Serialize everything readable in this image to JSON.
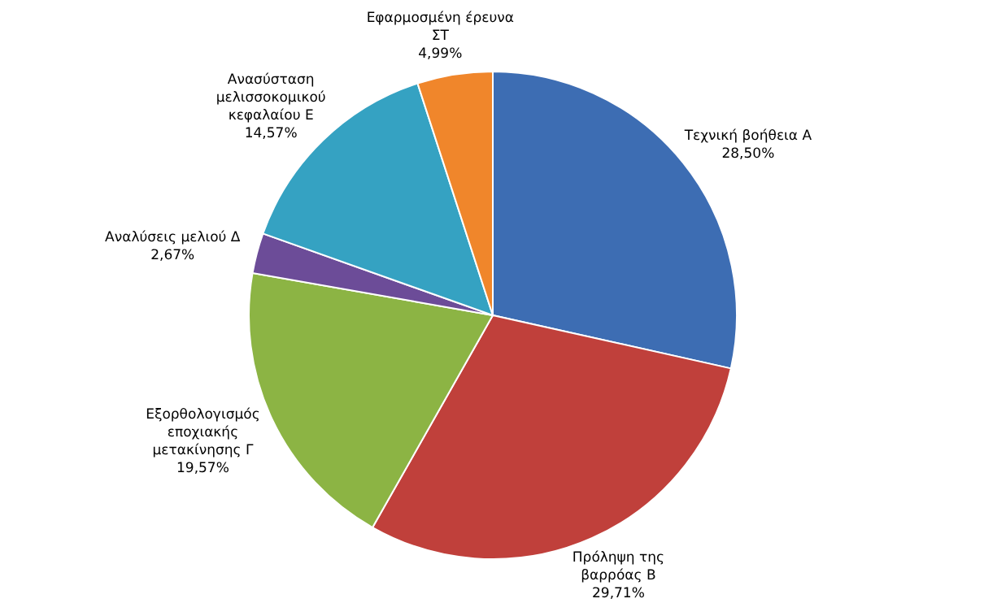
{
  "chart_data": {
    "type": "pie",
    "categories": [
      "Τεχνική βοήθεια Α",
      "Πρόληψη της βαρρόας Β",
      "Εξορθολογισμός εποχιακής μετακίνησης Γ",
      "Αναλύσεις μελιού Δ",
      "Ανασύσταση μελισσοκομικού κεφαλαίου Ε",
      "Εφαρμοσμένη έρευνα ΣΤ"
    ],
    "values": [
      28.5,
      29.71,
      19.57,
      2.67,
      14.57,
      4.99
    ],
    "value_labels": [
      "28,50%",
      "29,71%",
      "19,57%",
      "2,67%",
      "14,57%",
      "4,99%"
    ],
    "colors": [
      "#3d6db3",
      "#c0403b",
      "#8cb444",
      "#6c4c98",
      "#35a2c2",
      "#f0862b"
    ]
  }
}
